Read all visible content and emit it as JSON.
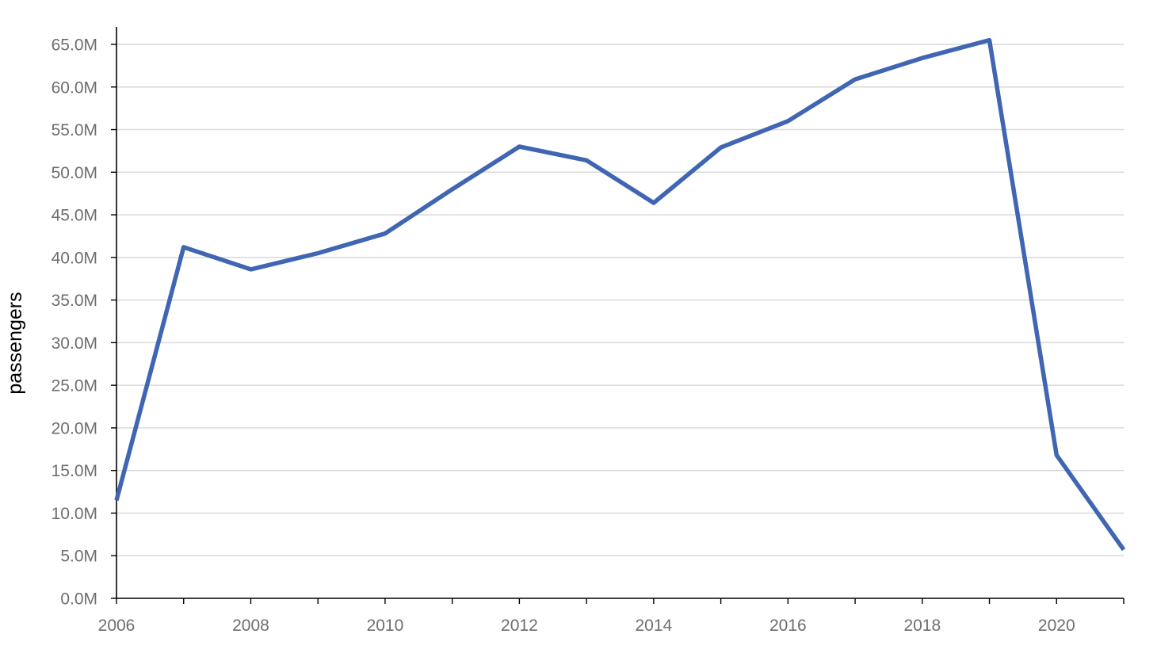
{
  "chart_data": {
    "type": "line",
    "title": "",
    "xlabel": "",
    "ylabel": "passengers",
    "x": [
      2006,
      2007,
      2008,
      2009,
      2010,
      2011,
      2012,
      2013,
      2014,
      2015,
      2016,
      2017,
      2018,
      2019,
      2020,
      2021
    ],
    "series": [
      {
        "values": [
          11.5,
          41.2,
          38.6,
          40.5,
          42.8,
          48.0,
          53.0,
          51.4,
          46.4,
          52.9,
          56.0,
          60.9,
          63.4,
          65.5,
          16.8,
          5.7
        ],
        "color": "#4066b3"
      }
    ],
    "xlim": [
      2006,
      2021
    ],
    "ylim": [
      0,
      65
    ],
    "x_ticks": [
      2006,
      2007,
      2008,
      2009,
      2010,
      2011,
      2012,
      2013,
      2014,
      2015,
      2016,
      2017,
      2018,
      2019,
      2020,
      2021
    ],
    "x_tick_labels": [
      "2006",
      "",
      "2008",
      "",
      "2010",
      "",
      "2012",
      "",
      "2014",
      "",
      "2016",
      "",
      "2018",
      "",
      "2020",
      ""
    ],
    "y_ticks": [
      0,
      5,
      10,
      15,
      20,
      25,
      30,
      35,
      40,
      45,
      50,
      55,
      60,
      65
    ],
    "y_tick_labels": [
      "0.0M",
      "5.0M",
      "10.0M",
      "15.0M",
      "20.0M",
      "25.0M",
      "30.0M",
      "35.0M",
      "40.0M",
      "45.0M",
      "50.0M",
      "55.0M",
      "60.0M",
      "65.0M"
    ],
    "grid": true,
    "legend": "none"
  }
}
